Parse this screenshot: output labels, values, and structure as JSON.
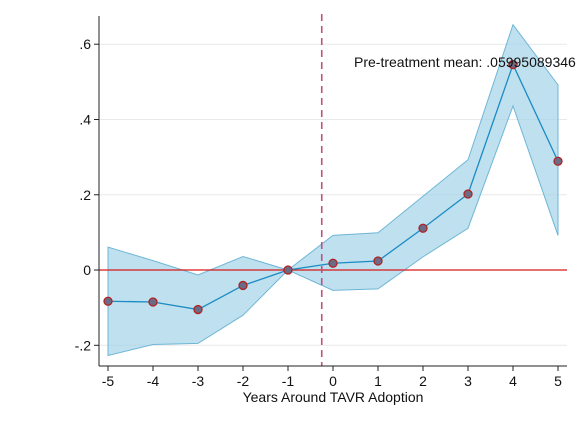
{
  "chart_data": {
    "type": "line",
    "title": "",
    "xlabel": "Years Around TAVR Adoption",
    "ylabel": "",
    "x": [
      -5,
      -4,
      -3,
      -2,
      -1,
      0,
      1,
      2,
      3,
      4,
      5
    ],
    "xticks": [
      "-5",
      "-4",
      "-3",
      "-2",
      "-1",
      "0",
      "1",
      "2",
      "3",
      "4",
      "5"
    ],
    "xlim": [
      -5.2,
      5.2
    ],
    "yticks": [
      -0.2,
      0,
      0.2,
      0.4,
      0.6
    ],
    "ytick_labels": [
      "-.2",
      "0",
      ".2",
      ".4",
      ".6"
    ],
    "ylim": [
      -0.255,
      0.675
    ],
    "series": [
      {
        "values": [
          -0.083,
          -0.085,
          -0.105,
          -0.041,
          0.0,
          0.018,
          0.024,
          0.111,
          0.202,
          0.546,
          0.289
        ],
        "ci_lower": [
          -0.227,
          -0.198,
          -0.195,
          -0.12,
          0.0,
          -0.054,
          -0.05,
          0.035,
          0.111,
          0.436,
          0.092
        ],
        "ci_upper": [
          0.061,
          0.025,
          -0.013,
          0.036,
          0.0,
          0.092,
          0.099,
          0.196,
          0.293,
          0.652,
          0.492
        ]
      }
    ],
    "reference_line_y": 0,
    "treatment_line_x": -0.25,
    "annotation": "Pre-treatment mean: .05995089346",
    "grid": "horizontal",
    "legend": "none",
    "colors": {
      "line": "#1a8bc4",
      "band_fill": "#a8d6ea",
      "band_edge": "#6fb6d6",
      "marker_fill": "#6b6b86",
      "marker_edge": "#b22222",
      "zero_line": "#d71a1a",
      "vline": "#c2507e",
      "grid": "#e8e8e8",
      "axis": "#222222"
    }
  }
}
